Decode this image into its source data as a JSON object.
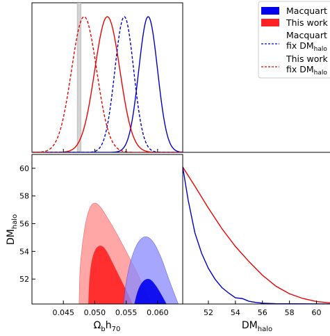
{
  "chart_data": [
    {
      "panel": "Omega_b h70 marginal",
      "type": "line",
      "xlim": [
        0.04,
        0.064
      ],
      "grid": false,
      "shaded_band": {
        "x": [
          0.0472,
          0.0478
        ]
      },
      "series": [
        {
          "name": "Macquart",
          "color": "#0000cc",
          "style": "solid",
          "x_peak": 0.0585,
          "sigma": 0.0015
        },
        {
          "name": "This work",
          "color": "#ee0000",
          "style": "solid",
          "x_peak": 0.052,
          "sigma": 0.002
        },
        {
          "name": "Macquart fix DM_halo",
          "color": "#0000cc",
          "style": "dashed",
          "x_peak": 0.0547,
          "sigma": 0.0015
        },
        {
          "name": "This work fix DM_halo",
          "color": "#ee0000",
          "style": "dashed",
          "x_peak": 0.0483,
          "sigma": 0.002
        }
      ]
    },
    {
      "panel": "joint posterior",
      "type": "area",
      "xlim": [
        0.04,
        0.064
      ],
      "ylim": [
        50.2,
        61.0
      ],
      "xticks": [
        "0.045",
        "0.050",
        "0.055",
        "0.060"
      ],
      "xtick_values": [
        0.045,
        0.05,
        0.055,
        0.06
      ],
      "yticks": [
        "52",
        "54",
        "56",
        "58",
        "60"
      ],
      "ytick_values": [
        52,
        54,
        56,
        58,
        60
      ],
      "contours": [
        {
          "series": "This work",
          "level": "outer",
          "color": "#ff8888",
          "outline": [
            [
              0.0475,
              50.2
            ],
            [
              0.0476,
              52.6
            ],
            [
              0.048,
              54.5
            ],
            [
              0.0486,
              56.3
            ],
            [
              0.0493,
              57.3
            ],
            [
              0.05,
              57.55
            ],
            [
              0.0508,
              57.3
            ],
            [
              0.0518,
              56.6
            ],
            [
              0.0535,
              55.3
            ],
            [
              0.055,
              54.0
            ],
            [
              0.0566,
              52.6
            ],
            [
              0.058,
              51.2
            ],
            [
              0.059,
              50.2
            ]
          ]
        },
        {
          "series": "This work",
          "level": "inner",
          "color": "#ff2222",
          "outline": [
            [
              0.049,
              50.2
            ],
            [
              0.0491,
              51.8
            ],
            [
              0.0495,
              53.4
            ],
            [
              0.0502,
              54.3
            ],
            [
              0.0511,
              54.45
            ],
            [
              0.0518,
              54.1
            ],
            [
              0.0528,
              53.2
            ],
            [
              0.054,
              52.1
            ],
            [
              0.0551,
              51.1
            ],
            [
              0.056,
              50.2
            ]
          ]
        },
        {
          "series": "Macquart",
          "level": "outer",
          "color": "#8888ff",
          "outline": [
            [
              0.0546,
              50.2
            ],
            [
              0.0549,
              51.6
            ],
            [
              0.0556,
              53.2
            ],
            [
              0.0566,
              54.5
            ],
            [
              0.0578,
              55.15
            ],
            [
              0.0591,
              54.9
            ],
            [
              0.0605,
              53.7
            ],
            [
              0.0617,
              52.1
            ],
            [
              0.0627,
              50.9
            ],
            [
              0.0633,
              50.2
            ]
          ]
        },
        {
          "series": "Macquart",
          "level": "inner",
          "color": "#0000ee",
          "outline": [
            [
              0.0563,
              50.2
            ],
            [
              0.0569,
              51.3
            ],
            [
              0.0578,
              51.95
            ],
            [
              0.0588,
              52.05
            ],
            [
              0.0598,
              51.5
            ],
            [
              0.0607,
              50.8
            ],
            [
              0.0614,
              50.2
            ]
          ]
        }
      ],
      "xlabel": "Ω_b h_70",
      "xlabel_main": "Ω",
      "xlabel_sub1": "b",
      "xlabel_mid": "h",
      "xlabel_sub2": "70",
      "ylabel": "DM_halo",
      "ylabel_main": "DM",
      "ylabel_sub": "halo"
    },
    {
      "panel": "DM_halo marginal",
      "type": "line",
      "xlim": [
        50.1,
        61.0
      ],
      "xticks": [
        "52",
        "54",
        "56",
        "58",
        "60"
      ],
      "xtick_values": [
        52,
        54,
        56,
        58,
        60
      ],
      "series": [
        {
          "name": "This work",
          "color": "#ee0000",
          "x": [
            50.1,
            51.0,
            52.0,
            53.0,
            54.0,
            55.0,
            56.0,
            57.0,
            58.0,
            59.0,
            60.0,
            61.0
          ],
          "y": [
            1.0,
            0.86,
            0.7,
            0.55,
            0.42,
            0.31,
            0.21,
            0.13,
            0.075,
            0.04,
            0.018,
            0.008
          ]
        },
        {
          "name": "Macquart",
          "color": "#0000cc",
          "x": [
            50.1,
            50.5,
            51.0,
            51.5,
            52.0,
            52.5,
            53.0,
            53.5,
            54.0,
            54.5,
            55.0,
            55.5,
            56.0,
            57.0,
            61.0
          ],
          "y": [
            1.0,
            0.76,
            0.52,
            0.37,
            0.26,
            0.18,
            0.12,
            0.08,
            0.045,
            0.04,
            0.02,
            0.012,
            0.006,
            0.002,
            0.0
          ]
        }
      ],
      "xlabel": "DM_halo",
      "xlabel_main": "DM",
      "xlabel_sub": "halo"
    }
  ],
  "legend": {
    "placement": "top-right",
    "entries": [
      {
        "label": "Macquart",
        "kind": "patch",
        "color": "#0000ee"
      },
      {
        "label": "This work",
        "kind": "patch",
        "color": "#ff2222"
      },
      {
        "label_main": "Macquart",
        "label_fix": "fix DM",
        "label_sub": "halo",
        "kind": "dashed",
        "color": "#0000cc"
      },
      {
        "label_main": "This work",
        "label_fix": "fix DM",
        "label_sub": "halo",
        "kind": "dashed",
        "color": "#ee0000"
      }
    ]
  }
}
